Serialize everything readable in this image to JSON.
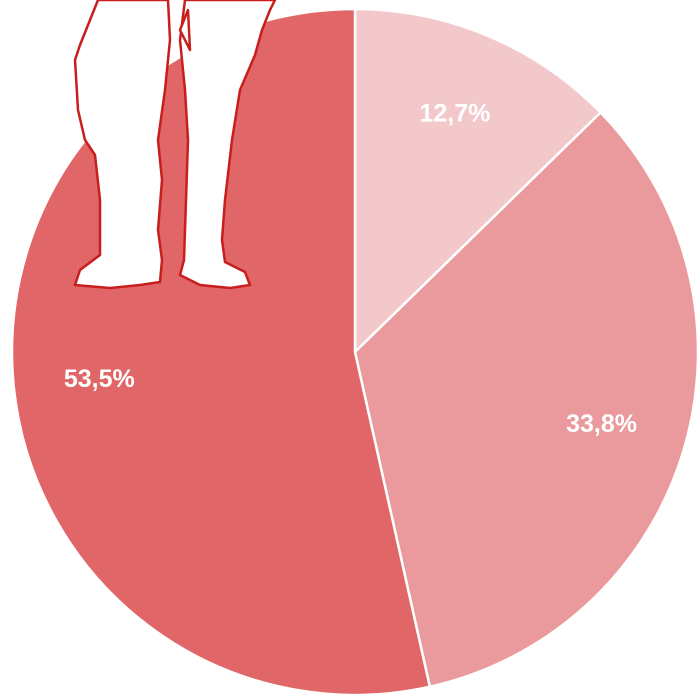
{
  "chart_data": {
    "type": "pie",
    "values": [
      12.7,
      33.8,
      53.5
    ],
    "value_labels": [
      "12,7%",
      "33,8%",
      "53,5%"
    ],
    "colors": [
      "#f3c8ca",
      "#ea9a9c",
      "#e06668"
    ]
  }
}
